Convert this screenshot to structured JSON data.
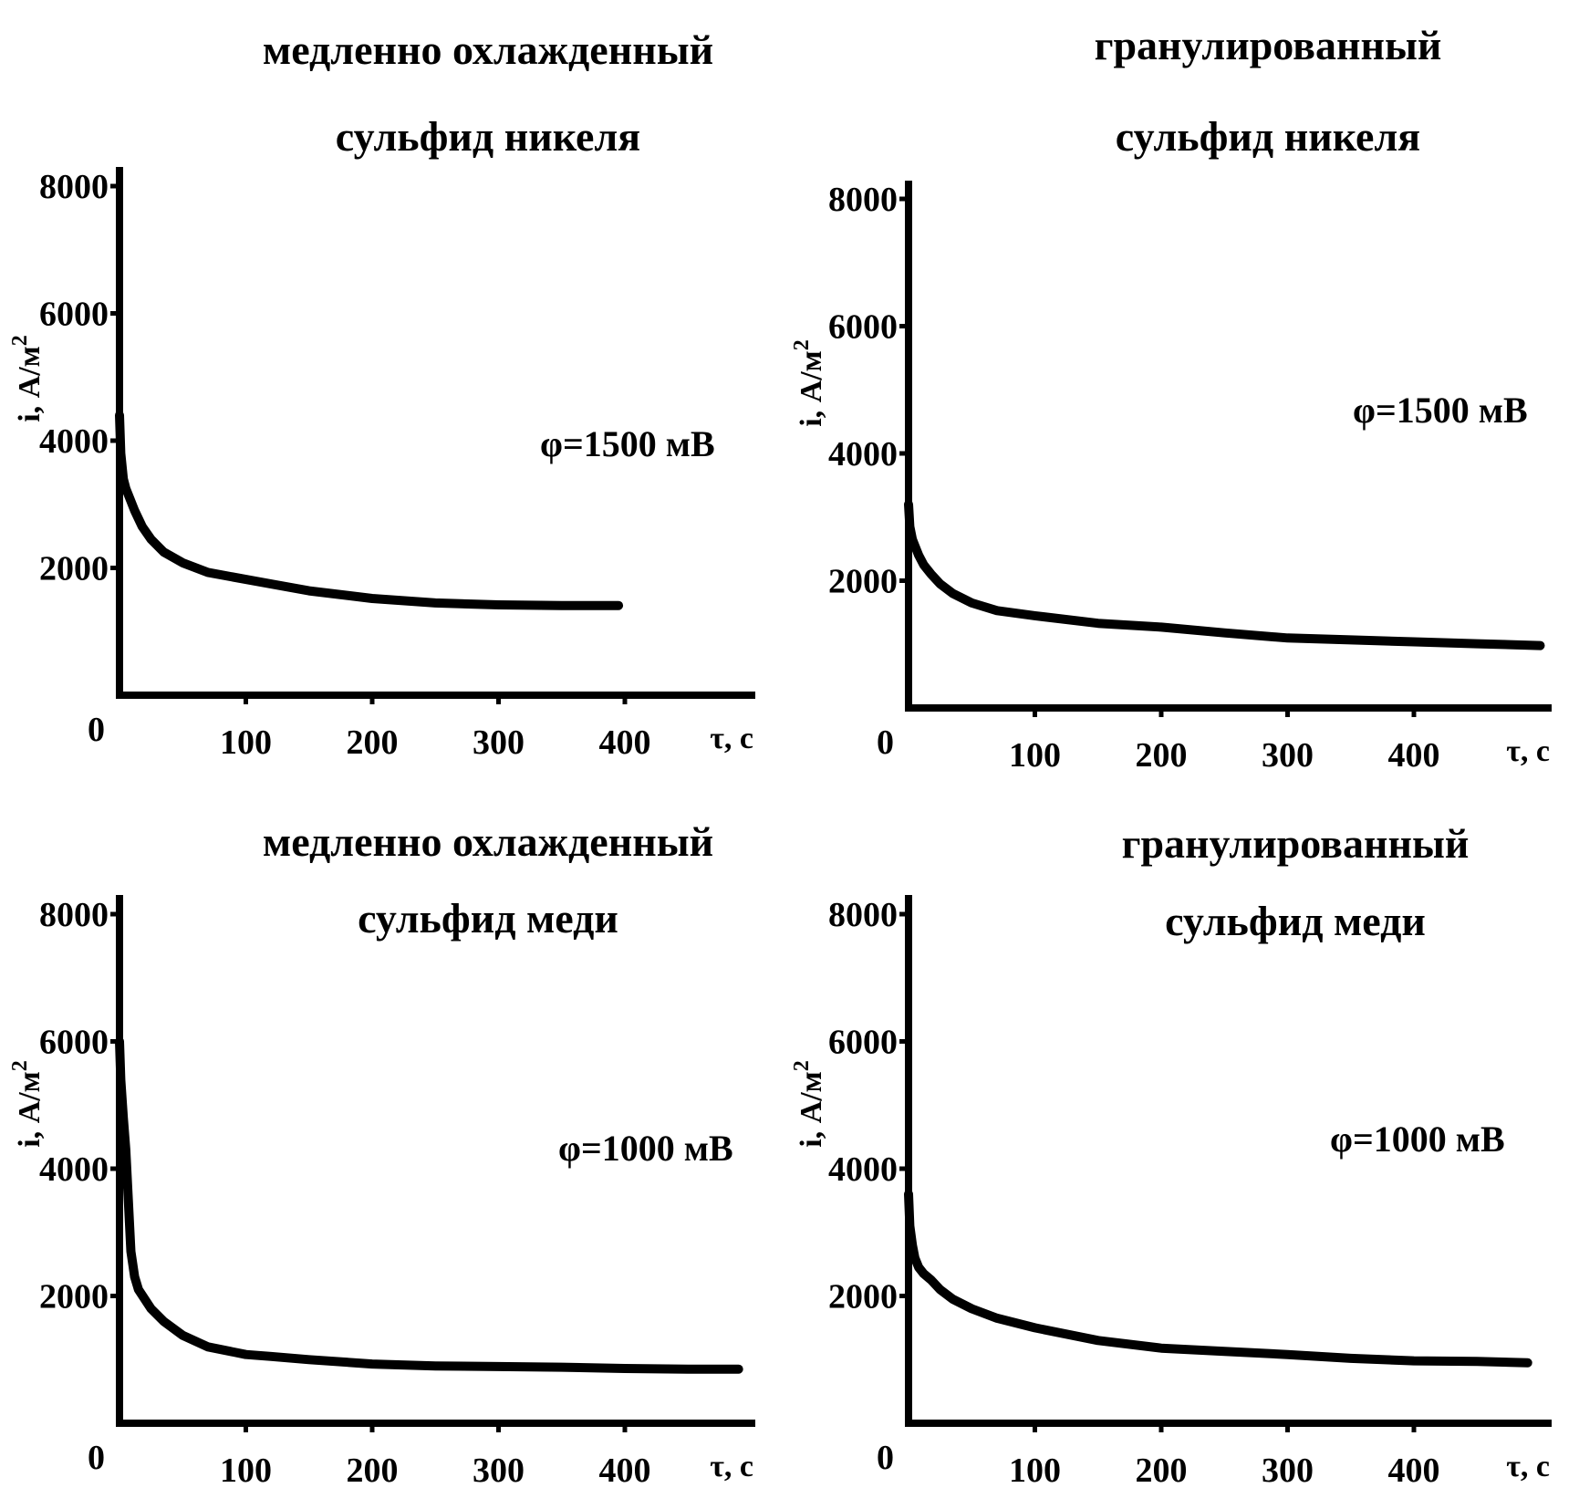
{
  "chart_data": [
    {
      "type": "line",
      "title_lines": [
        "медленно охлажденный",
        "сульфид никеля"
      ],
      "xlabel": "τ, с",
      "ylabel": "i, А/м",
      "ylabel_sup": "2",
      "annotation": "φ=1500 мВ",
      "x_origin_label": "0",
      "xticks": [
        100,
        200,
        300,
        400
      ],
      "yticks": [
        2000,
        4000,
        6000,
        8000
      ],
      "xlim": [
        0,
        500
      ],
      "ylim": [
        0,
        8000
      ],
      "series": [
        {
          "x": [
            0,
            1,
            3,
            5,
            8,
            12,
            18,
            25,
            35,
            50,
            70,
            100,
            150,
            200,
            250,
            300,
            350,
            395
          ],
          "y": [
            4400,
            3800,
            3400,
            3250,
            3100,
            2900,
            2650,
            2450,
            2250,
            2080,
            1930,
            1820,
            1640,
            1520,
            1450,
            1420,
            1410,
            1410
          ]
        }
      ]
    },
    {
      "type": "line",
      "title_lines": [
        "гранулированный",
        "сульфид никеля"
      ],
      "xlabel": "τ, с",
      "ylabel": "i, А/м",
      "ylabel_sup": "2",
      "annotation": "φ=1500 мВ",
      "x_origin_label": "0",
      "xticks": [
        100,
        200,
        300,
        400
      ],
      "yticks": [
        2000,
        4000,
        6000,
        8000
      ],
      "xlim": [
        0,
        500
      ],
      "ylim": [
        0,
        8000
      ],
      "series": [
        {
          "x": [
            0,
            1,
            3,
            5,
            8,
            12,
            18,
            25,
            35,
            50,
            70,
            100,
            150,
            200,
            250,
            300,
            350,
            400,
            450,
            500
          ],
          "y": [
            3200,
            2850,
            2650,
            2550,
            2400,
            2250,
            2100,
            1950,
            1800,
            1650,
            1530,
            1450,
            1330,
            1270,
            1180,
            1100,
            1070,
            1040,
            1010,
            980
          ]
        }
      ]
    },
    {
      "type": "line",
      "title_lines": [
        "медленно охлажденный",
        "сульфид меди"
      ],
      "xlabel": "τ, с",
      "ylabel": "i, А/м",
      "ylabel_sup": "2",
      "annotation": "φ=1000 мВ",
      "x_origin_label": "0",
      "xticks": [
        100,
        200,
        300,
        400
      ],
      "yticks": [
        2000,
        4000,
        6000,
        8000
      ],
      "xlim": [
        0,
        500
      ],
      "ylim": [
        0,
        8000
      ],
      "series": [
        {
          "x": [
            0,
            1,
            3,
            5,
            7,
            9,
            12,
            15,
            20,
            25,
            35,
            50,
            70,
            100,
            120,
            150,
            200,
            250,
            300,
            350,
            400,
            450,
            490
          ],
          "y": [
            6000,
            5400,
            4800,
            4300,
            3500,
            2700,
            2300,
            2100,
            1950,
            1800,
            1600,
            1380,
            1200,
            1080,
            1050,
            1000,
            930,
            900,
            890,
            880,
            860,
            850,
            850
          ]
        }
      ]
    },
    {
      "type": "line",
      "title_lines": [
        "гранулированный",
        "сульфид меди"
      ],
      "xlabel": "τ, с",
      "ylabel": "i, А/м",
      "ylabel_sup": "2",
      "annotation": "φ=1000 мВ",
      "x_origin_label": "0",
      "xticks": [
        100,
        200,
        300,
        400
      ],
      "yticks": [
        2000,
        4000,
        6000,
        8000
      ],
      "xlim": [
        0,
        500
      ],
      "ylim": [
        0,
        8000
      ],
      "series": [
        {
          "x": [
            0,
            1,
            3,
            5,
            8,
            12,
            18,
            25,
            35,
            50,
            70,
            100,
            150,
            200,
            250,
            300,
            350,
            400,
            450,
            490
          ],
          "y": [
            3600,
            3100,
            2800,
            2600,
            2450,
            2350,
            2250,
            2100,
            1950,
            1800,
            1650,
            1500,
            1300,
            1180,
            1130,
            1080,
            1020,
            980,
            970,
            950
          ]
        }
      ]
    }
  ]
}
